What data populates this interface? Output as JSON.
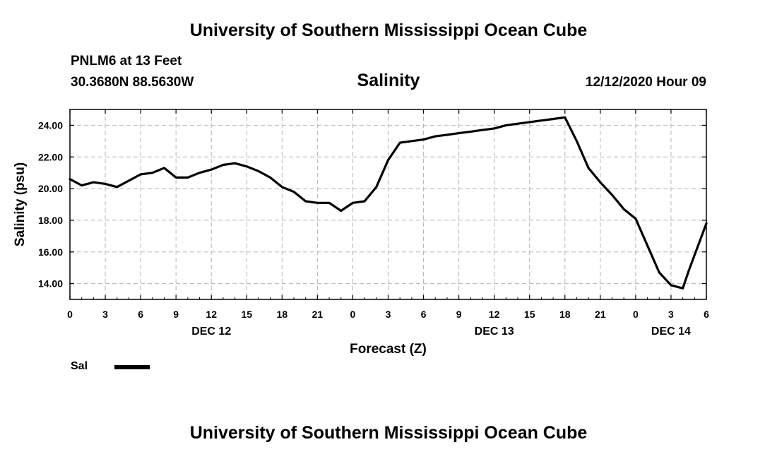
{
  "page": {
    "title_top": "University of Southern Mississippi Ocean Cube",
    "title_bottom": "University of Southern Mississippi Ocean Cube",
    "station": "PNLM6 at 13 Feet",
    "coords": "30.3680N 88.5630W",
    "datetime": "12/12/2020 Hour 09"
  },
  "legend": {
    "label": "Sal",
    "color": "#000000"
  },
  "chart_data": {
    "type": "line",
    "title": "Salinity",
    "xlabel": "Forecast (Z)",
    "ylabel": "Salinity (psu)",
    "xlim": [
      0,
      54
    ],
    "ylim": [
      13,
      25
    ],
    "grid": true,
    "yticks": [
      14,
      16,
      18,
      20,
      22,
      24
    ],
    "ytick_labels": [
      "14.00",
      "16.00",
      "18.00",
      "20.00",
      "22.00",
      "24.00"
    ],
    "xticks": [
      0,
      3,
      6,
      9,
      12,
      15,
      18,
      21,
      24,
      27,
      30,
      33,
      36,
      39,
      42,
      45,
      48,
      51,
      54
    ],
    "xtick_labels": [
      "0",
      "3",
      "6",
      "9",
      "12",
      "15",
      "18",
      "21",
      "0",
      "3",
      "6",
      "9",
      "12",
      "15",
      "18",
      "21",
      "0",
      "3",
      "6"
    ],
    "day_labels": [
      {
        "x": 12,
        "label": "DEC 12"
      },
      {
        "x": 36,
        "label": "DEC 13"
      },
      {
        "x": 51,
        "label": "DEC 14"
      }
    ],
    "series": [
      {
        "name": "Sal",
        "color": "#000000",
        "x": [
          0,
          1,
          2,
          3,
          4,
          5,
          6,
          7,
          8,
          9,
          10,
          11,
          12,
          13,
          14,
          15,
          16,
          17,
          18,
          19,
          20,
          21,
          22,
          23,
          24,
          25,
          26,
          27,
          28,
          29,
          30,
          31,
          32,
          33,
          34,
          35,
          36,
          37,
          38,
          39,
          40,
          41,
          42,
          43,
          44,
          45,
          46,
          47,
          48,
          49,
          50,
          51,
          52,
          52.5,
          53,
          54
        ],
        "values": [
          20.6,
          20.2,
          20.4,
          20.3,
          20.1,
          20.5,
          20.9,
          21.0,
          21.3,
          20.7,
          20.7,
          21.0,
          21.2,
          21.5,
          21.6,
          21.4,
          21.1,
          20.7,
          20.1,
          19.8,
          19.2,
          19.1,
          19.1,
          18.6,
          19.1,
          19.2,
          20.1,
          21.8,
          22.9,
          23.0,
          23.1,
          23.3,
          23.4,
          23.5,
          23.6,
          23.7,
          23.8,
          24.0,
          24.1,
          24.2,
          24.3,
          24.4,
          24.5,
          23.0,
          21.3,
          20.4,
          19.6,
          18.7,
          18.1,
          16.4,
          14.7,
          13.9,
          13.7,
          14.8,
          15.8,
          17.8
        ]
      }
    ]
  }
}
